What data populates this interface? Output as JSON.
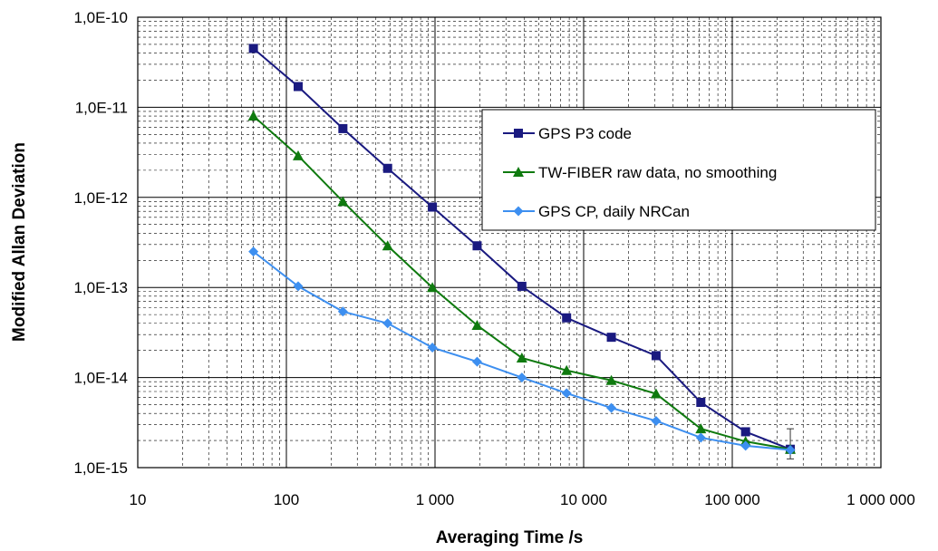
{
  "chart_data": {
    "type": "line",
    "xscale": "log",
    "yscale": "log",
    "xlim": [
      10,
      1000000
    ],
    "ylim": [
      1e-15,
      1e-10
    ],
    "xlabel": "Averaging Time /s",
    "ylabel": "Modified Allan Deviation",
    "xtick_values": [
      10,
      100,
      1000,
      10000,
      100000,
      1000000
    ],
    "xtick_labels": [
      "10",
      "100",
      "1 000",
      "10 000",
      "100 000",
      "1 000 000"
    ],
    "ytick_values": [
      1e-10,
      1e-11,
      1e-12,
      1e-13,
      1e-14,
      1e-15
    ],
    "ytick_labels": [
      "1,0E-10",
      "1,0E-11",
      "1,0E-12",
      "1,0E-13",
      "1,0E-14",
      "1,0E-15"
    ],
    "grid": "major and minor",
    "legend_position": "right",
    "x": [
      60,
      120,
      240,
      480,
      960,
      1920,
      3840,
      7680,
      15360,
      30720,
      61440,
      122880,
      245760
    ],
    "series": [
      {
        "name": "GPS P3 code",
        "color": "#1a1a80",
        "marker": "square",
        "values": [
          4.5e-11,
          1.7e-11,
          5.8e-12,
          2.1e-12,
          7.8e-13,
          2.9e-13,
          1.03e-13,
          4.6e-14,
          2.8e-14,
          1.75e-14,
          5.3e-15,
          2.5e-15,
          1.6e-15
        ]
      },
      {
        "name": "TW-FIBER raw data, no smoothing",
        "color": "#0f7a0f",
        "marker": "triangle",
        "values": [
          8e-12,
          2.9e-12,
          9e-13,
          2.9e-13,
          1e-13,
          3.8e-14,
          1.65e-14,
          1.2e-14,
          9.3e-15,
          6.6e-15,
          2.7e-15,
          1.95e-15,
          1.6e-15
        ]
      },
      {
        "name": "GPS CP, daily NRCan",
        "color": "#3d8ff0",
        "marker": "diamond",
        "values": [
          2.5e-13,
          1.03e-13,
          5.4e-14,
          4e-14,
          2.15e-14,
          1.5e-14,
          1e-14,
          6.7e-15,
          4.6e-15,
          3.3e-15,
          2.15e-15,
          1.75e-15,
          1.57e-15
        ]
      }
    ]
  }
}
